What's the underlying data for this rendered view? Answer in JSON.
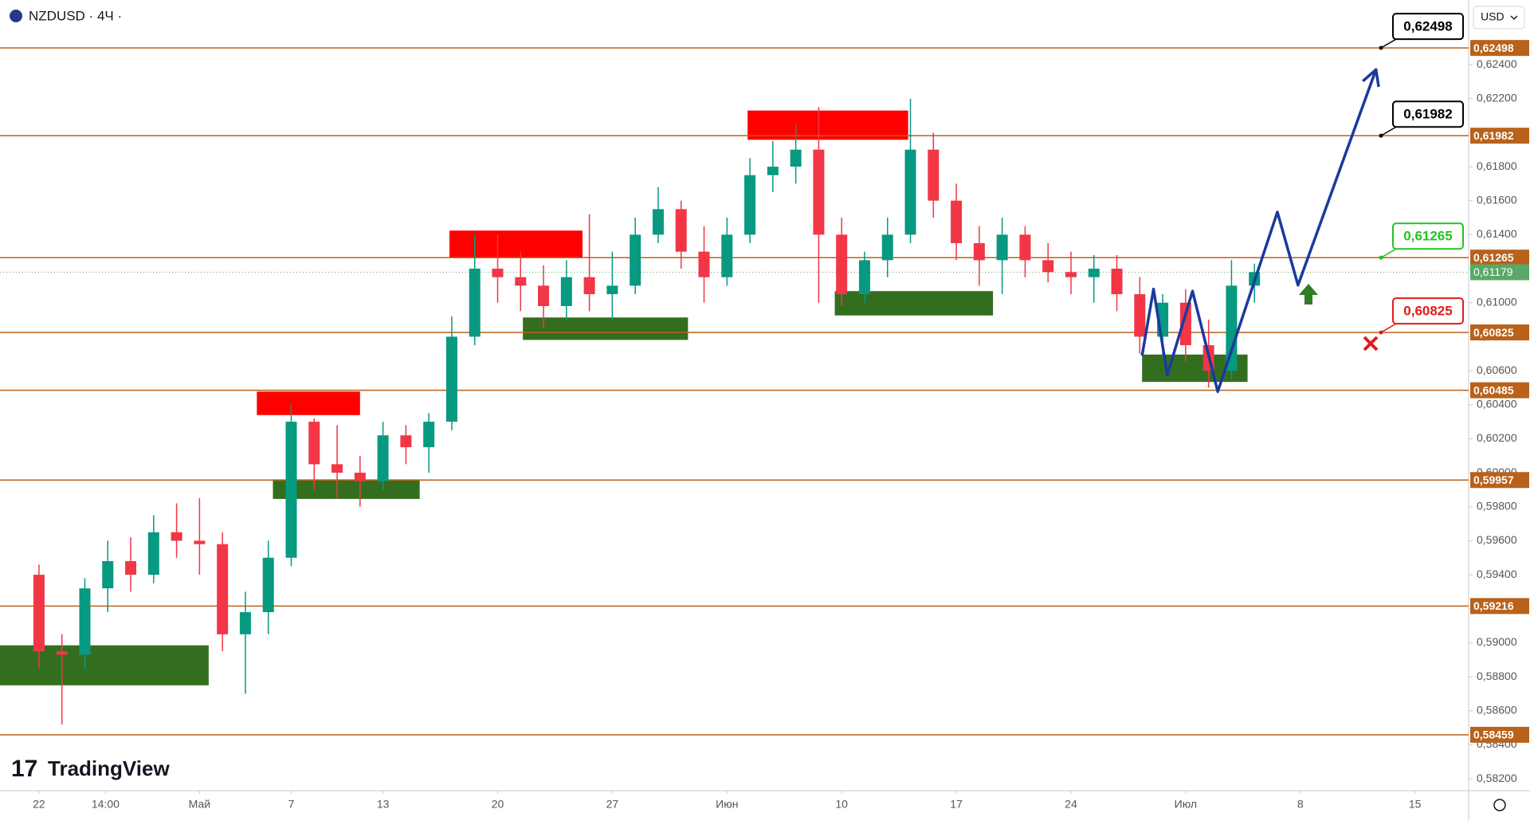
{
  "header": {
    "symbol": "NZDUSD · 4Ч ·",
    "currency": "USD",
    "brand": "TradingView"
  },
  "chart_data": {
    "type": "candlestick",
    "up_color": "#089981",
    "down_color": "#f23645",
    "open": [
      0.594,
      0.5895,
      0.5893,
      0.5932,
      0.5948,
      0.594,
      0.5965,
      0.596,
      0.5958,
      0.5905,
      0.5918,
      0.595,
      0.603,
      0.6005,
      0.6,
      0.5995,
      0.6022,
      0.6015,
      0.603,
      0.608,
      0.612,
      0.6115,
      0.611,
      0.6098,
      0.6115,
      0.6105,
      0.611,
      0.614,
      0.6155,
      0.613,
      0.6115,
      0.614,
      0.6175,
      0.618,
      0.619,
      0.614,
      0.6105,
      0.6125,
      0.614,
      0.619,
      0.616,
      0.6135,
      0.6125,
      0.614,
      0.6125,
      0.6118,
      0.6115,
      0.612,
      0.6105,
      0.608,
      0.61,
      0.6075,
      0.606,
      0.611
    ],
    "high": [
      0.5946,
      0.5905,
      0.5938,
      0.596,
      0.5962,
      0.5975,
      0.5982,
      0.5985,
      0.5965,
      0.593,
      0.596,
      0.604,
      0.6032,
      0.6028,
      0.601,
      0.603,
      0.6028,
      0.6035,
      0.6092,
      0.614,
      0.614,
      0.613,
      0.6122,
      0.6125,
      0.6152,
      0.613,
      0.615,
      0.6168,
      0.616,
      0.6145,
      0.615,
      0.6185,
      0.6195,
      0.6205,
      0.6215,
      0.615,
      0.613,
      0.615,
      0.622,
      0.62,
      0.617,
      0.6145,
      0.615,
      0.6145,
      0.6135,
      0.613,
      0.6128,
      0.6128,
      0.6115,
      0.6105,
      0.6108,
      0.609,
      0.6125,
      0.6123
    ],
    "low": [
      0.5885,
      0.5852,
      0.5885,
      0.5918,
      0.593,
      0.5935,
      0.595,
      0.594,
      0.5895,
      0.587,
      0.5905,
      0.5945,
      0.599,
      0.5985,
      0.598,
      0.599,
      0.6005,
      0.6,
      0.6025,
      0.6075,
      0.61,
      0.6095,
      0.6085,
      0.609,
      0.6095,
      0.609,
      0.6105,
      0.6135,
      0.612,
      0.61,
      0.611,
      0.6135,
      0.6165,
      0.617,
      0.61,
      0.6098,
      0.61,
      0.6115,
      0.6135,
      0.615,
      0.6125,
      0.611,
      0.6105,
      0.6115,
      0.6112,
      0.6105,
      0.61,
      0.6095,
      0.607,
      0.6068,
      0.6065,
      0.605,
      0.6055,
      0.61
    ],
    "close": [
      0.5895,
      0.5893,
      0.5932,
      0.5948,
      0.594,
      0.5965,
      0.596,
      0.5958,
      0.5905,
      0.5918,
      0.595,
      0.603,
      0.6005,
      0.6,
      0.5995,
      0.6022,
      0.6015,
      0.603,
      0.608,
      0.612,
      0.6115,
      0.611,
      0.6098,
      0.6115,
      0.6105,
      0.611,
      0.614,
      0.6155,
      0.613,
      0.6115,
      0.614,
      0.6175,
      0.618,
      0.619,
      0.614,
      0.6105,
      0.6125,
      0.614,
      0.619,
      0.616,
      0.6135,
      0.6125,
      0.614,
      0.6125,
      0.6118,
      0.6115,
      0.612,
      0.6105,
      0.608,
      0.61,
      0.6075,
      0.606,
      0.611,
      0.6118
    ],
    "xlim": [
      -1.7,
      62.34
    ],
    "xticks": [
      {
        "value": 0,
        "label": "22"
      },
      {
        "value": 2.9,
        "label": "14:00"
      },
      {
        "value": 7,
        "label": "Май"
      },
      {
        "value": 11,
        "label": "7"
      },
      {
        "value": 15,
        "label": "13"
      },
      {
        "value": 20,
        "label": "20"
      },
      {
        "value": 25,
        "label": "27"
      },
      {
        "value": 30,
        "label": "Июн"
      },
      {
        "value": 35,
        "label": "10"
      },
      {
        "value": 40,
        "label": "17"
      },
      {
        "value": 45,
        "label": "24"
      },
      {
        "value": 50,
        "label": "Июл"
      },
      {
        "value": 55,
        "label": "8"
      },
      {
        "value": 60,
        "label": "15"
      }
    ],
    "ylim": [
      0.5813,
      0.6278
    ],
    "yticks": [
      {
        "value": 0.624,
        "label": "0,62400"
      },
      {
        "value": 0.622,
        "label": "0,62200"
      },
      {
        "value": 0.62,
        "label": "0,62000"
      },
      {
        "value": 0.618,
        "label": "0,61800"
      },
      {
        "value": 0.616,
        "label": "0,61600"
      },
      {
        "value": 0.614,
        "label": "0,61400"
      },
      {
        "value": 0.612,
        "label": "0,61200"
      },
      {
        "value": 0.61,
        "label": "0,61000"
      },
      {
        "value": 0.608,
        "label": "0,60800"
      },
      {
        "value": 0.606,
        "label": "0,60600"
      },
      {
        "value": 0.604,
        "label": "0,60400"
      },
      {
        "value": 0.602,
        "label": "0,60200"
      },
      {
        "value": 0.6,
        "label": "0,60000"
      },
      {
        "value": 0.598,
        "label": "0,59800"
      },
      {
        "value": 0.596,
        "label": "0,59600"
      },
      {
        "value": 0.594,
        "label": "0,59400"
      },
      {
        "value": 0.592,
        "label": "0,59200"
      },
      {
        "value": 0.59,
        "label": "0,59000"
      },
      {
        "value": 0.588,
        "label": "0,58800"
      },
      {
        "value": 0.586,
        "label": "0,58600"
      },
      {
        "value": 0.584,
        "label": "0,58400"
      },
      {
        "value": 0.582,
        "label": "0,58200"
      }
    ],
    "level_color": "#b8621b",
    "levels": [
      {
        "value": 0.62498,
        "label": "0,62498",
        "callout_color": "#000000"
      },
      {
        "value": 0.61982,
        "label": "0,61982",
        "callout_color": "#000000"
      },
      {
        "value": 0.61265,
        "label": "0,61265",
        "callout_color": "#22c322"
      },
      {
        "value": 0.60825,
        "label": "0,60825",
        "callout_color": "#e01b1b"
      },
      {
        "value": 0.60485,
        "label": "0,60485"
      },
      {
        "value": 0.59957,
        "label": "0,59957"
      },
      {
        "value": 0.59216,
        "label": "0,59216"
      },
      {
        "value": 0.58459,
        "label": "0,58459"
      }
    ],
    "last_price": {
      "value": 0.61179,
      "label": "0,61179",
      "color": "#5aa86a"
    },
    "zones": [
      {
        "x": [
          -1.7,
          7.4
        ],
        "y": [
          0.5875,
          0.58985
        ],
        "color": "#336e1f"
      },
      {
        "x": [
          9.5,
          14.0
        ],
        "y": [
          0.60339,
          0.60477
        ],
        "color": "#ff0000"
      },
      {
        "x": [
          10.2,
          16.6
        ],
        "y": [
          0.59846,
          0.59961
        ],
        "color": "#336e1f"
      },
      {
        "x": [
          17.9,
          23.7
        ],
        "y": [
          0.61263,
          0.61424
        ],
        "color": "#ff0000"
      },
      {
        "x": [
          21.1,
          28.3
        ],
        "y": [
          0.60781,
          0.60913
        ],
        "color": "#336e1f"
      },
      {
        "x": [
          30.9,
          37.9
        ],
        "y": [
          0.61958,
          0.6213
        ],
        "color": "#ff0000"
      },
      {
        "x": [
          34.7,
          41.6
        ],
        "y": [
          0.60925,
          0.61068
        ],
        "color": "#336e1f"
      },
      {
        "x": [
          48.1,
          52.7
        ],
        "y": [
          0.60534,
          0.60695
        ],
        "color": "#336e1f"
      }
    ],
    "projection": {
      "color": "#1a3a9e",
      "x": [
        48.1,
        48.6,
        49.2,
        50.3,
        51.4,
        54.0,
        54.9,
        58.3
      ],
      "y": [
        0.60689,
        0.6108,
        0.60575,
        0.61068,
        0.60477,
        0.61533,
        0.61103,
        0.62371
      ]
    }
  }
}
